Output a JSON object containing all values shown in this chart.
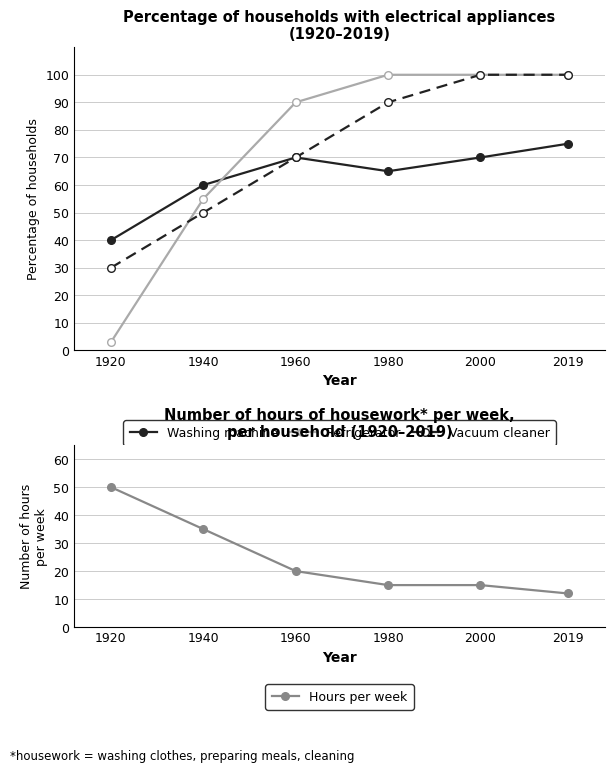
{
  "years": [
    1920,
    1940,
    1960,
    1980,
    2000,
    2019
  ],
  "washing_machine": [
    40,
    60,
    70,
    65,
    70,
    75
  ],
  "refrigerator": [
    3,
    55,
    90,
    100,
    100,
    100
  ],
  "vacuum_cleaner": [
    30,
    50,
    70,
    90,
    100,
    100
  ],
  "hours_per_week": [
    50,
    35,
    20,
    15,
    15,
    12
  ],
  "chart1_title": "Percentage of households with electrical appliances\n(1920–2019)",
  "chart2_title": "Number of hours of housework* per week,\nper household (1920–2019)",
  "chart1_ylabel": "Percentage of households",
  "chart2_ylabel": "Number of hours\nper week",
  "xlabel": "Year",
  "legend1": [
    "Washing machine",
    "Refrigerator",
    "Vacuum cleaner"
  ],
  "legend2": [
    "Hours per week"
  ],
  "footnote": "*housework = washing clothes, preparing meals, cleaning",
  "line_color_washing": "#222222",
  "line_color_refrigerator": "#aaaaaa",
  "line_color_vacuum": "#222222",
  "line_color_hours": "#888888",
  "chart1_ylim": [
    0,
    110
  ],
  "chart2_ylim": [
    0,
    65
  ],
  "chart1_yticks": [
    0,
    10,
    20,
    30,
    40,
    50,
    60,
    70,
    80,
    90,
    100
  ],
  "chart2_yticks": [
    0,
    10,
    20,
    30,
    40,
    50,
    60
  ],
  "xlim": [
    1912,
    2027
  ]
}
